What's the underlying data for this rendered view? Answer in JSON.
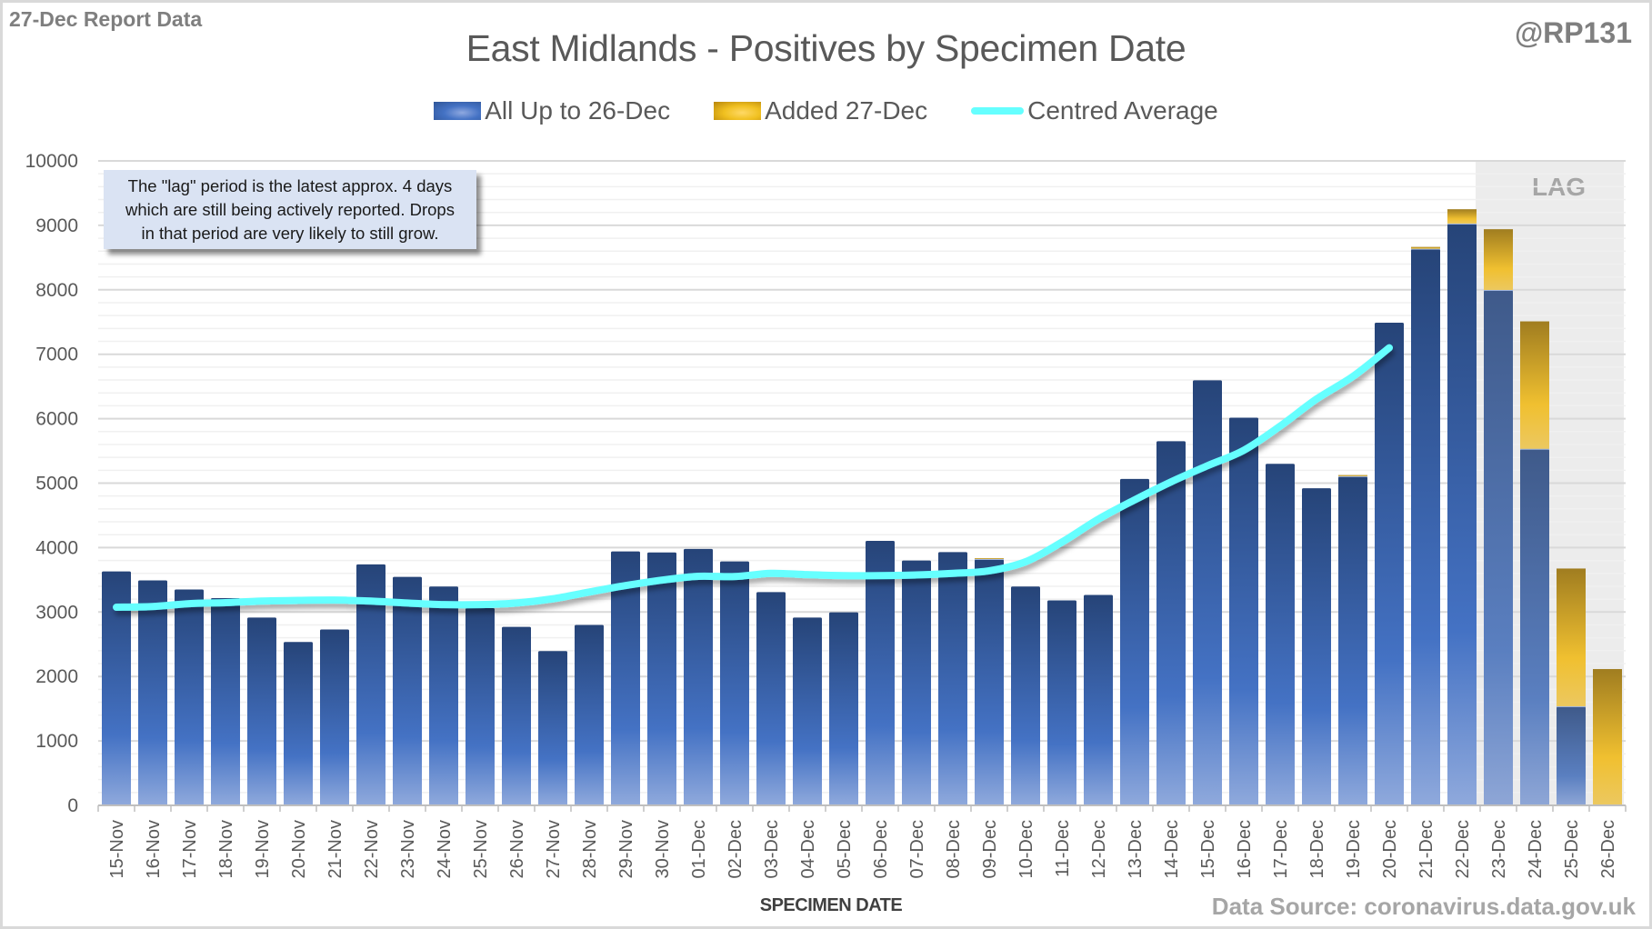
{
  "header": {
    "report_label": "27-Dec Report Data",
    "handle": "@RP131"
  },
  "annotation": {
    "note": "The \"lag\" period is the latest approx. 4 days\nwhich are still being actively reported.  Drops\nin that period are very likely to still grow.",
    "lag_label": "LAG"
  },
  "footer": {
    "source": "Data Source: coronavirus.data.gov.uk"
  },
  "colors": {
    "series_blue": "#4472c4",
    "series_blue_dark": "#264478",
    "series_gold": "#f0c020",
    "series_gold_dark": "#a07d20",
    "average_line": "#66ffff",
    "lag_band": "#ececec",
    "gridline_major": "#d9d9d9",
    "gridline_minor": "#f0f0f0"
  },
  "chart_data": {
    "type": "bar",
    "stacked": true,
    "title": "East Midlands - Positives by Specimen Date",
    "xlabel": "SPECIMEN DATE",
    "ylabel": "",
    "ylim": [
      0,
      10000
    ],
    "yticks": [
      0,
      1000,
      2000,
      3000,
      4000,
      5000,
      6000,
      7000,
      8000,
      9000,
      10000
    ],
    "grid": true,
    "legend_position": "top-center",
    "lag_region": {
      "from": "23-Dec",
      "to": "26-Dec",
      "label": "LAG"
    },
    "categories": [
      "15-Nov",
      "16-Nov",
      "17-Nov",
      "18-Nov",
      "19-Nov",
      "20-Nov",
      "21-Nov",
      "22-Nov",
      "23-Nov",
      "24-Nov",
      "25-Nov",
      "26-Nov",
      "27-Nov",
      "28-Nov",
      "29-Nov",
      "30-Nov",
      "01-Dec",
      "02-Dec",
      "03-Dec",
      "04-Dec",
      "05-Dec",
      "06-Dec",
      "07-Dec",
      "08-Dec",
      "09-Dec",
      "10-Dec",
      "11-Dec",
      "12-Dec",
      "13-Dec",
      "14-Dec",
      "15-Dec",
      "16-Dec",
      "17-Dec",
      "18-Dec",
      "19-Dec",
      "20-Dec",
      "21-Dec",
      "22-Dec",
      "23-Dec",
      "24-Dec",
      "25-Dec",
      "26-Dec"
    ],
    "series": [
      {
        "name": "All Up to 26-Dec",
        "kind": "bar",
        "values": [
          3630,
          3490,
          3350,
          3215,
          2915,
          2535,
          2730,
          3740,
          3545,
          3395,
          3060,
          2770,
          2395,
          2800,
          3940,
          3925,
          3980,
          3785,
          3310,
          2915,
          2995,
          4105,
          3800,
          3930,
          3815,
          3395,
          3180,
          3265,
          5065,
          5650,
          6595,
          6015,
          5300,
          4920,
          5100,
          7490,
          8630,
          9020,
          7990,
          5525,
          1530,
          0
        ]
      },
      {
        "name": "Added 27-Dec",
        "kind": "bar",
        "values": [
          0,
          0,
          0,
          0,
          0,
          0,
          0,
          0,
          0,
          0,
          0,
          0,
          0,
          0,
          0,
          0,
          0,
          0,
          0,
          0,
          0,
          0,
          0,
          0,
          20,
          0,
          0,
          0,
          0,
          0,
          0,
          0,
          0,
          0,
          25,
          0,
          35,
          230,
          950,
          1985,
          2145,
          2115
        ]
      },
      {
        "name": "Centred Average",
        "kind": "line",
        "values": [
          3075,
          3085,
          3130,
          3145,
          3170,
          3180,
          3185,
          3170,
          3140,
          3115,
          3115,
          3140,
          3205,
          3310,
          3410,
          3495,
          3555,
          3550,
          3600,
          3580,
          3565,
          3565,
          3575,
          3600,
          3640,
          3780,
          4085,
          4440,
          4740,
          5020,
          5270,
          5510,
          5885,
          6305,
          6655,
          7100,
          null,
          null,
          null,
          null,
          null,
          null
        ]
      }
    ]
  }
}
